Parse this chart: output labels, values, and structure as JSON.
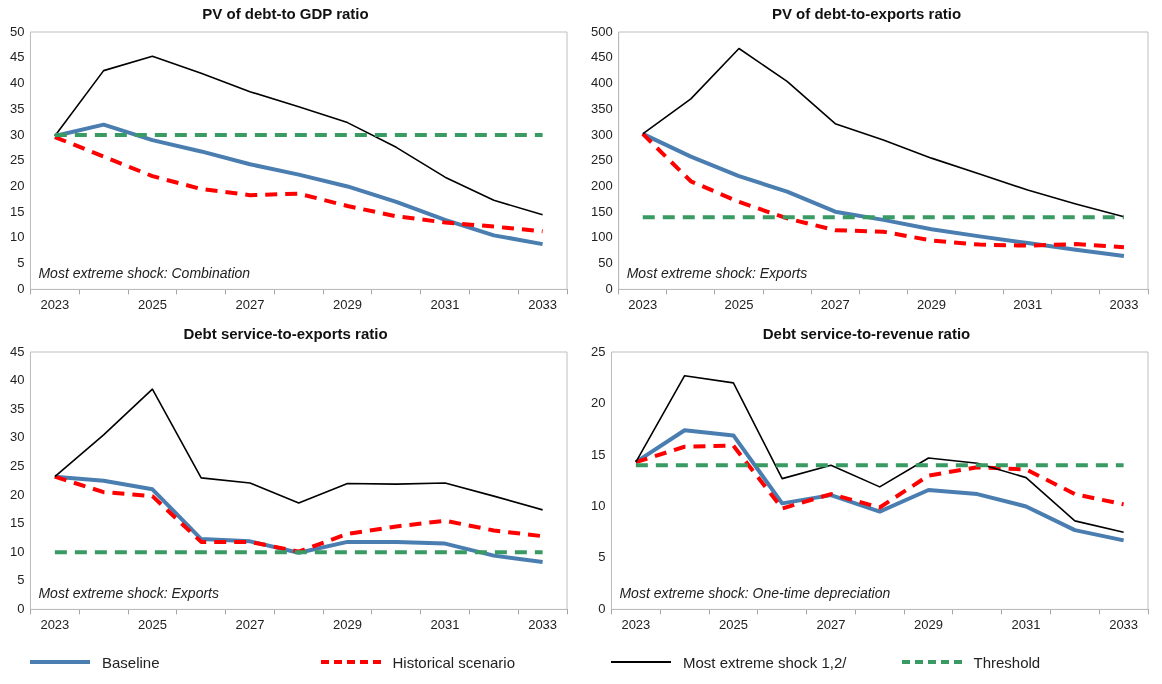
{
  "chart_data": [
    {
      "type": "line",
      "title": "PV of debt-to GDP ratio",
      "categories": [
        "2023",
        null,
        "2025",
        null,
        "2027",
        null,
        "2029",
        null,
        "2031",
        null,
        "2033"
      ],
      "ylim": [
        0,
        50
      ],
      "yticks": [
        0,
        5,
        10,
        15,
        20,
        25,
        30,
        35,
        40,
        45,
        50
      ],
      "marker": "none",
      "legend": "bottom",
      "annotations": [
        "Most extreme shock: Combination"
      ],
      "series": [
        {
          "name": "Baseline",
          "color": "#4a7eb0",
          "line_style": "solid",
          "values": [
            29.8,
            32,
            29,
            26.8,
            24.3,
            22.3,
            20,
            17,
            13.5,
            10.5,
            8.8
          ]
        },
        {
          "name": "Historical scenario",
          "color": "#ff0000",
          "line_style": "dashed",
          "values": [
            29.6,
            25.8,
            22,
            19.5,
            18.3,
            18.6,
            16.2,
            14.2,
            13,
            12.2,
            11.3
          ]
        },
        {
          "name": "Most extreme shock 1,2/",
          "color": "#000000",
          "line_style": "solid",
          "values": [
            29.8,
            42.5,
            45.3,
            42,
            38.4,
            35.5,
            32.4,
            27.6,
            21.8,
            17.3,
            14.5
          ]
        },
        {
          "name": "Threshold",
          "color": "#3a9a63",
          "line_style": "dashed",
          "values": [
            30,
            30,
            30,
            30,
            30,
            30,
            30,
            30,
            30,
            30,
            30
          ]
        }
      ]
    },
    {
      "type": "line",
      "title": "PV of debt-to-exports ratio",
      "categories": [
        "2023",
        null,
        "2025",
        null,
        "2027",
        null,
        "2029",
        null,
        "2031",
        null,
        "2033"
      ],
      "ylim": [
        0,
        500
      ],
      "yticks": [
        0,
        50,
        100,
        150,
        200,
        250,
        300,
        350,
        400,
        450,
        500
      ],
      "marker": "none",
      "legend": "bottom",
      "annotations": [
        "Most extreme shock: Exports"
      ],
      "series": [
        {
          "name": "Baseline",
          "color": "#4a7eb0",
          "line_style": "solid",
          "values": [
            302,
            258,
            220,
            190,
            151,
            135,
            117,
            103,
            90,
            77,
            65
          ]
        },
        {
          "name": "Historical scenario",
          "color": "#ff0000",
          "line_style": "dashed",
          "values": [
            302,
            210,
            170,
            138,
            115,
            112,
            95,
            87,
            85,
            88,
            82
          ]
        },
        {
          "name": "Most extreme shock 1,2/",
          "color": "#000000",
          "line_style": "solid",
          "values": [
            302,
            370,
            468,
            404,
            322,
            290,
            255,
            224,
            193,
            166,
            141
          ]
        },
        {
          "name": "Threshold",
          "color": "#3a9a63",
          "line_style": "dashed",
          "values": [
            140,
            140,
            140,
            140,
            140,
            140,
            140,
            140,
            140,
            140,
            140
          ]
        }
      ]
    },
    {
      "type": "line",
      "title": "Debt service-to-exports ratio",
      "categories": [
        "2023",
        null,
        "2025",
        null,
        "2027",
        null,
        "2029",
        null,
        "2031",
        null,
        "2033"
      ],
      "ylim": [
        0,
        45
      ],
      "yticks": [
        0,
        5,
        10,
        15,
        20,
        25,
        30,
        35,
        40,
        45
      ],
      "marker": "none",
      "legend": "bottom",
      "annotations": [
        "Most extreme shock: Exports"
      ],
      "series": [
        {
          "name": "Baseline",
          "color": "#4a7eb0",
          "line_style": "solid",
          "values": [
            23.2,
            22.5,
            21,
            12.3,
            11.9,
            9.9,
            11.8,
            11.8,
            11.5,
            9.4,
            8.3
          ]
        },
        {
          "name": "Historical scenario",
          "color": "#ff0000",
          "line_style": "dashed",
          "values": [
            23.2,
            20.5,
            19.8,
            11.8,
            11.8,
            10.1,
            13.2,
            14.5,
            15.5,
            13.8,
            12.8
          ]
        },
        {
          "name": "Most extreme shock 1,2/",
          "color": "#000000",
          "line_style": "solid",
          "values": [
            23.2,
            30.5,
            38.5,
            23,
            22.1,
            18.6,
            22,
            21.9,
            22.1,
            19.8,
            17.4
          ]
        },
        {
          "name": "Threshold",
          "color": "#3a9a63",
          "line_style": "dashed",
          "values": [
            10,
            10,
            10,
            10,
            10,
            10,
            10,
            10,
            10,
            10,
            10
          ]
        }
      ]
    },
    {
      "type": "line",
      "title": "Debt service-to-revenue ratio",
      "categories": [
        "2023",
        null,
        "2025",
        null,
        "2027",
        null,
        "2029",
        null,
        "2031",
        null,
        "2033"
      ],
      "ylim": [
        0,
        25
      ],
      "yticks": [
        0,
        5,
        10,
        15,
        20,
        25
      ],
      "marker": "none",
      "legend": "bottom",
      "annotations": [
        "Most extreme shock: One-time depreciation"
      ],
      "series": [
        {
          "name": "Baseline",
          "color": "#4a7eb0",
          "line_style": "solid",
          "values": [
            14.3,
            17.4,
            16.9,
            10.3,
            11.1,
            9.5,
            11.6,
            11.2,
            10,
            7.7,
            6.7
          ]
        },
        {
          "name": "Historical scenario",
          "color": "#ff0000",
          "line_style": "dashed",
          "values": [
            14.3,
            15.8,
            15.9,
            9.8,
            11.2,
            9.9,
            13,
            13.8,
            13.6,
            11.2,
            10.2
          ]
        },
        {
          "name": "Most extreme shock 1,2/",
          "color": "#000000",
          "line_style": "solid",
          "values": [
            14.3,
            22.7,
            22,
            12.7,
            14,
            11.9,
            14.7,
            14.2,
            12.8,
            8.6,
            7.5
          ]
        },
        {
          "name": "Threshold",
          "color": "#3a9a63",
          "line_style": "dashed",
          "values": [
            14,
            14,
            14,
            14,
            14,
            14,
            14,
            14,
            14,
            14,
            14
          ]
        }
      ]
    }
  ]
}
